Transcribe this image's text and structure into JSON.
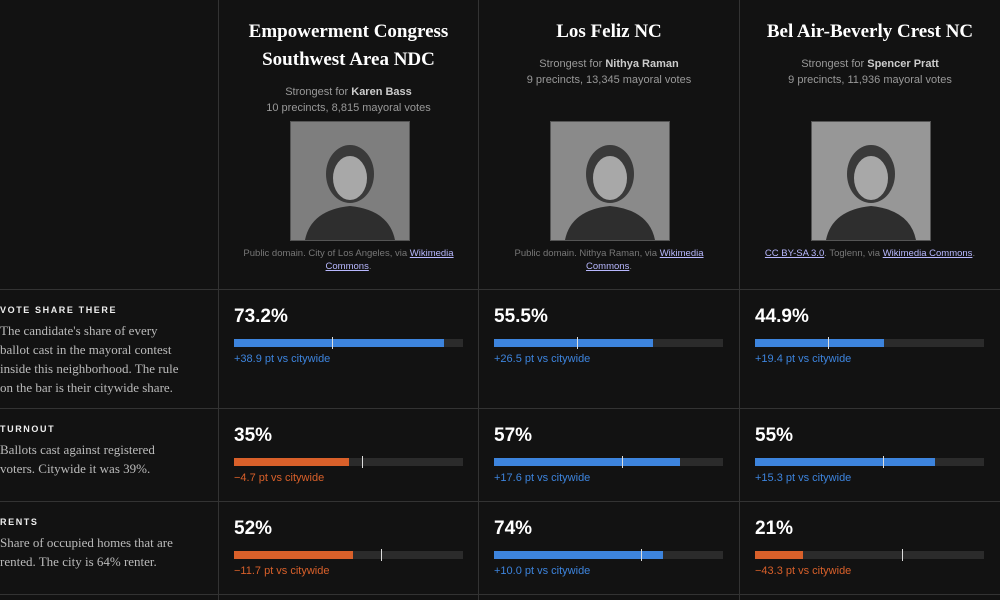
{
  "columns": [
    {
      "title": "Empowerment Congress Southwest Area NDC",
      "strongest_prefix": "Strongest for",
      "candidate": "Karen Bass",
      "meta": "10 precincts, 8,815 mayoral votes",
      "credit": [
        {
          "text": "Public domain. City of Los Angeles, via "
        },
        {
          "text": "Wikimedia Commons",
          "link": true
        },
        {
          "text": "."
        }
      ]
    },
    {
      "title": "Los Feliz NC",
      "strongest_prefix": "Strongest for",
      "candidate": "Nithya Raman",
      "meta": "9 precincts, 13,345 mayoral votes",
      "credit": [
        {
          "text": "Public domain. Nithya Raman, via "
        },
        {
          "text": "Wikimedia Commons",
          "link": true
        },
        {
          "text": "."
        }
      ]
    },
    {
      "title": "Bel Air-Beverly Crest NC",
      "strongest_prefix": "Strongest for",
      "candidate": "Spencer Pratt",
      "meta": "9 precincts, 11,936 mayoral votes",
      "credit": [
        {
          "text": "CC BY-SA 3.0",
          "link": true
        },
        {
          "text": ". Toglenn, via "
        },
        {
          "text": "Wikimedia Commons",
          "link": true
        },
        {
          "text": "."
        }
      ]
    }
  ],
  "rows": [
    {
      "label": "VOTE SHARE THERE",
      "description": "The candidate's share of every ballot cast in the mayoral contest inside this neighborhood. The rule on the bar is their citywide share.",
      "xlim": [
        0,
        80
      ],
      "cells": [
        {
          "value": 73.2,
          "value_label": "73.2%",
          "citywide": 34.3,
          "delta": "+38.9 pt vs citywide"
        },
        {
          "value": 55.5,
          "value_label": "55.5%",
          "citywide": 29,
          "delta": "+26.5 pt vs citywide"
        },
        {
          "value": 44.9,
          "value_label": "44.9%",
          "citywide": 25.5,
          "delta": "+19.4 pt vs citywide"
        }
      ]
    },
    {
      "label": "TURNOUT",
      "description": "Ballots cast against registered voters. Citywide it was 39%.",
      "xlim": [
        0,
        70
      ],
      "cells": [
        {
          "value": 35,
          "value_label": "35%",
          "citywide": 39,
          "delta": "−4.7 pt vs citywide"
        },
        {
          "value": 57,
          "value_label": "57%",
          "citywide": 39,
          "delta": "+17.6 pt vs citywide"
        },
        {
          "value": 55,
          "value_label": "55%",
          "citywide": 39,
          "delta": "+15.3 pt vs citywide"
        }
      ]
    },
    {
      "label": "RENTS",
      "description": "Share of occupied homes that are rented. The city is 64% renter.",
      "xlim": [
        0,
        100
      ],
      "cells": [
        {
          "value": 52,
          "value_label": "52%",
          "citywide": 64,
          "delta": "−11.7 pt vs citywide"
        },
        {
          "value": 74,
          "value_label": "74%",
          "citywide": 64,
          "delta": "+10.0 pt vs citywide"
        },
        {
          "value": 21,
          "value_label": "21%",
          "citywide": 64,
          "delta": "−43.3 pt vs citywide"
        }
      ]
    }
  ]
}
